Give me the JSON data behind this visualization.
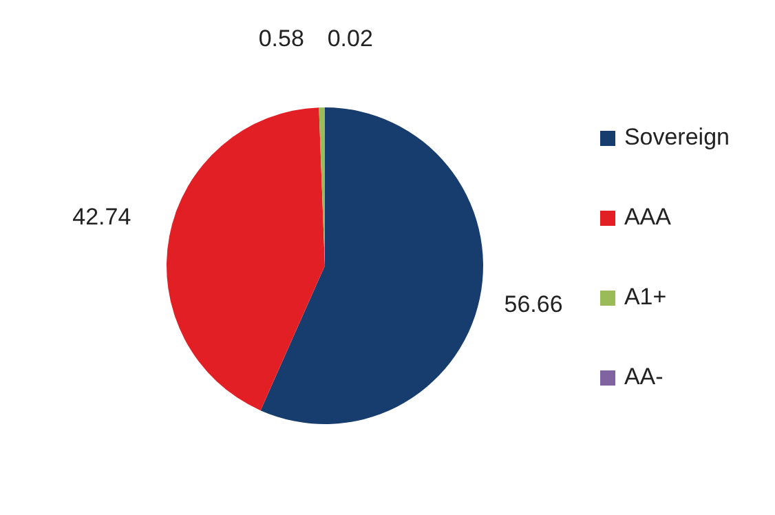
{
  "chart_data": {
    "type": "pie",
    "categories": [
      "Sovereign",
      "AAA",
      "A1+",
      "AA-"
    ],
    "values": [
      56.66,
      42.74,
      0.58,
      0.02
    ],
    "colors": [
      "#173d6e",
      "#e31f26",
      "#9bbb59",
      "#8064a2"
    ],
    "data_labels": true,
    "legend": "right"
  }
}
